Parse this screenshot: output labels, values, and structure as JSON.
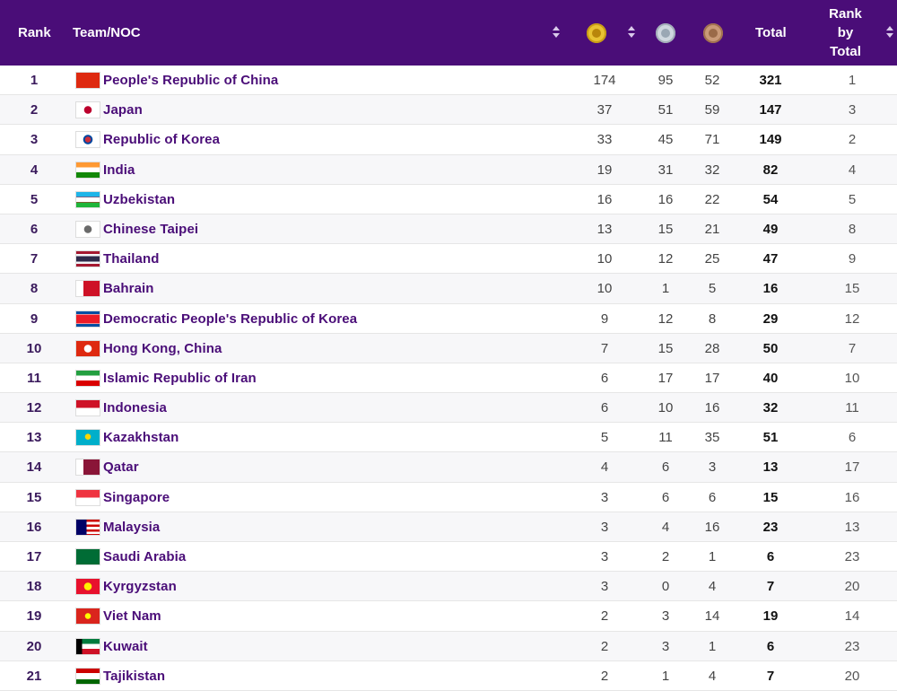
{
  "header": {
    "rank": "Rank",
    "team": "Team/NOC",
    "gold_icon": "gold-medal-icon",
    "silver_icon": "silver-medal-icon",
    "bronze_icon": "bronze-medal-icon",
    "total": "Total",
    "rank_by_total": [
      "Rank",
      "by",
      "Total"
    ]
  },
  "colors": {
    "header_bg": "#4a0d78",
    "team_text": "#4a0d78"
  },
  "rows": [
    {
      "rank": "1",
      "team": "People's Republic of China",
      "flag": "china-flag-icon",
      "gold": "174",
      "silver": "95",
      "bronze": "52",
      "total": "321",
      "rank_by_total": "1"
    },
    {
      "rank": "2",
      "team": "Japan",
      "flag": "japan-flag-icon",
      "gold": "37",
      "silver": "51",
      "bronze": "59",
      "total": "147",
      "rank_by_total": "3"
    },
    {
      "rank": "3",
      "team": "Republic of Korea",
      "flag": "korea-flag-icon",
      "gold": "33",
      "silver": "45",
      "bronze": "71",
      "total": "149",
      "rank_by_total": "2"
    },
    {
      "rank": "4",
      "team": "India",
      "flag": "india-flag-icon",
      "gold": "19",
      "silver": "31",
      "bronze": "32",
      "total": "82",
      "rank_by_total": "4"
    },
    {
      "rank": "5",
      "team": "Uzbekistan",
      "flag": "uzbekistan-flag-icon",
      "gold": "16",
      "silver": "16",
      "bronze": "22",
      "total": "54",
      "rank_by_total": "5"
    },
    {
      "rank": "6",
      "team": "Chinese Taipei",
      "flag": "chinese-taipei-flag-icon",
      "gold": "13",
      "silver": "15",
      "bronze": "21",
      "total": "49",
      "rank_by_total": "8"
    },
    {
      "rank": "7",
      "team": "Thailand",
      "flag": "thailand-flag-icon",
      "gold": "10",
      "silver": "12",
      "bronze": "25",
      "total": "47",
      "rank_by_total": "9"
    },
    {
      "rank": "8",
      "team": "Bahrain",
      "flag": "bahrain-flag-icon",
      "gold": "10",
      "silver": "1",
      "bronze": "5",
      "total": "16",
      "rank_by_total": "15"
    },
    {
      "rank": "9",
      "team": "Democratic People's Republic of Korea",
      "flag": "dpr-korea-flag-icon",
      "gold": "9",
      "silver": "12",
      "bronze": "8",
      "total": "29",
      "rank_by_total": "12"
    },
    {
      "rank": "10",
      "team": "Hong Kong, China",
      "flag": "hong-kong-flag-icon",
      "gold": "7",
      "silver": "15",
      "bronze": "28",
      "total": "50",
      "rank_by_total": "7"
    },
    {
      "rank": "11",
      "team": "Islamic Republic of Iran",
      "flag": "iran-flag-icon",
      "gold": "6",
      "silver": "17",
      "bronze": "17",
      "total": "40",
      "rank_by_total": "10"
    },
    {
      "rank": "12",
      "team": "Indonesia",
      "flag": "indonesia-flag-icon",
      "gold": "6",
      "silver": "10",
      "bronze": "16",
      "total": "32",
      "rank_by_total": "11"
    },
    {
      "rank": "13",
      "team": "Kazakhstan",
      "flag": "kazakhstan-flag-icon",
      "gold": "5",
      "silver": "11",
      "bronze": "35",
      "total": "51",
      "rank_by_total": "6"
    },
    {
      "rank": "14",
      "team": "Qatar",
      "flag": "qatar-flag-icon",
      "gold": "4",
      "silver": "6",
      "bronze": "3",
      "total": "13",
      "rank_by_total": "17"
    },
    {
      "rank": "15",
      "team": "Singapore",
      "flag": "singapore-flag-icon",
      "gold": "3",
      "silver": "6",
      "bronze": "6",
      "total": "15",
      "rank_by_total": "16"
    },
    {
      "rank": "16",
      "team": "Malaysia",
      "flag": "malaysia-flag-icon",
      "gold": "3",
      "silver": "4",
      "bronze": "16",
      "total": "23",
      "rank_by_total": "13"
    },
    {
      "rank": "17",
      "team": "Saudi Arabia",
      "flag": "saudi-arabia-flag-icon",
      "gold": "3",
      "silver": "2",
      "bronze": "1",
      "total": "6",
      "rank_by_total": "23"
    },
    {
      "rank": "18",
      "team": "Kyrgyzstan",
      "flag": "kyrgyzstan-flag-icon",
      "gold": "3",
      "silver": "0",
      "bronze": "4",
      "total": "7",
      "rank_by_total": "20"
    },
    {
      "rank": "19",
      "team": "Viet Nam",
      "flag": "viet-nam-flag-icon",
      "gold": "2",
      "silver": "3",
      "bronze": "14",
      "total": "19",
      "rank_by_total": "14"
    },
    {
      "rank": "20",
      "team": "Kuwait",
      "flag": "kuwait-flag-icon",
      "gold": "2",
      "silver": "3",
      "bronze": "1",
      "total": "6",
      "rank_by_total": "23"
    },
    {
      "rank": "21",
      "team": "Tajikistan",
      "flag": "tajikistan-flag-icon",
      "gold": "2",
      "silver": "1",
      "bronze": "4",
      "total": "7",
      "rank_by_total": "20"
    }
  ]
}
